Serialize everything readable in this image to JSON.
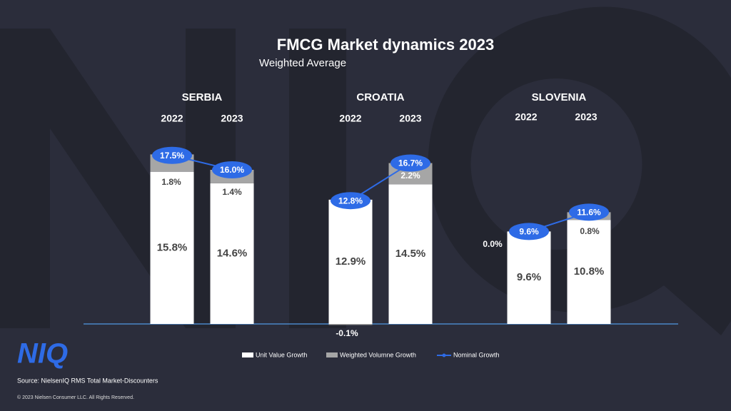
{
  "title": "FMCG Market dynamics 2023",
  "subtitle": "Weighted Average",
  "logo": "NIQ",
  "source": "Source: NielsenIQ RMS Total Market-Discounters",
  "copyright": "© 2023 Nielsen Consumer LLC. All Rights Reserved.",
  "chart_data": [
    {
      "type": "bar",
      "title": "SERBIA",
      "categories": [
        "2022",
        "2023"
      ],
      "series": [
        {
          "name": "Unit Value Growth",
          "color": "#ffffff",
          "values": [
            15.8,
            14.6
          ],
          "value_labels": [
            "15.8%",
            "14.6%"
          ]
        },
        {
          "name": "Weighted Volumne Growth",
          "color": "#a6a6a6",
          "values": [
            1.8,
            1.4
          ],
          "value_labels": [
            "1.8%",
            "1.4%"
          ]
        },
        {
          "name": "Nominal Growth",
          "type": "line",
          "color": "#2e6be6",
          "values": [
            17.5,
            16.0
          ],
          "value_labels": [
            "17.5%",
            "16.0%"
          ]
        }
      ]
    },
    {
      "type": "bar",
      "title": "CROATIA",
      "categories": [
        "2022",
        "2023"
      ],
      "series": [
        {
          "name": "Unit Value Growth",
          "color": "#ffffff",
          "values": [
            12.9,
            14.5
          ],
          "value_labels": [
            "12.9%",
            "14.5%"
          ]
        },
        {
          "name": "Weighted Volumne Growth",
          "color": "#a6a6a6",
          "values": [
            -0.1,
            2.2
          ],
          "value_labels": [
            "-0.1%",
            "2.2%"
          ]
        },
        {
          "name": "Nominal Growth",
          "type": "line",
          "color": "#2e6be6",
          "values": [
            12.8,
            16.7
          ],
          "value_labels": [
            "12.8%",
            "16.7%"
          ]
        }
      ]
    },
    {
      "type": "bar",
      "title": "SLOVENIA",
      "categories": [
        "2022",
        "2023"
      ],
      "series": [
        {
          "name": "Unit Value Growth",
          "color": "#ffffff",
          "values": [
            9.6,
            10.8
          ],
          "value_labels": [
            "9.6%",
            "10.8%"
          ]
        },
        {
          "name": "Weighted Volumne Growth",
          "color": "#a6a6a6",
          "values": [
            0.0,
            0.8
          ],
          "value_labels": [
            "0.0%",
            "0.8%"
          ]
        },
        {
          "name": "Nominal Growth",
          "type": "line",
          "color": "#2e6be6",
          "values": [
            9.6,
            11.6
          ],
          "value_labels": [
            "9.6%",
            "11.6%"
          ]
        }
      ]
    }
  ]
}
